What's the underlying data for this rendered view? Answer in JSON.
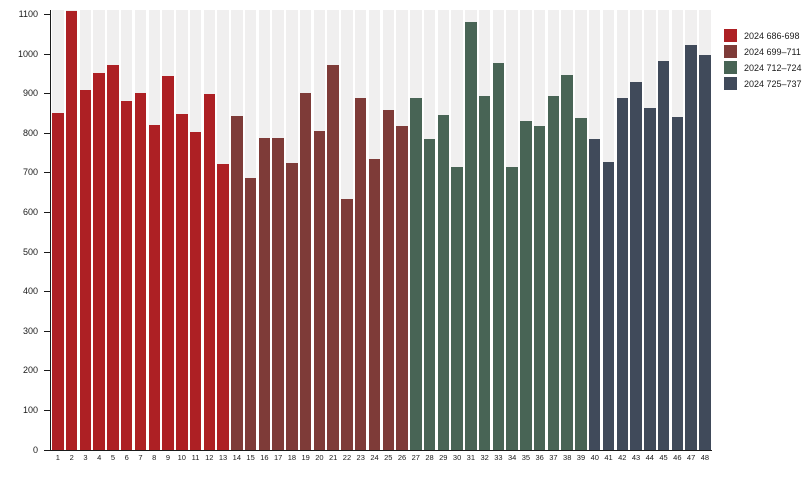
{
  "chart_data": {
    "type": "bar",
    "title": "",
    "xlabel": "",
    "ylabel": "",
    "ylim": [
      0,
      1100
    ],
    "y_ticks": [
      0,
      100,
      200,
      300,
      400,
      500,
      600,
      700,
      800,
      900,
      1000,
      1100
    ],
    "grid": false,
    "legend_position": "top-right",
    "plot_background_column_color": "#f0efef",
    "categories": [
      "1",
      "2",
      "3",
      "4",
      "5",
      "6",
      "7",
      "8",
      "9",
      "10",
      "11",
      "12",
      "13",
      "14",
      "15",
      "16",
      "17",
      "18",
      "19",
      "20",
      "21",
      "22",
      "23",
      "24",
      "25",
      "26",
      "27",
      "28",
      "29",
      "30",
      "31",
      "32",
      "33",
      "34",
      "35",
      "36",
      "37",
      "38",
      "39",
      "40",
      "41",
      "42",
      "43",
      "44",
      "45",
      "46",
      "47",
      "48"
    ],
    "series": [
      {
        "name": "2024 686-698",
        "color": "#ad2024",
        "category_range": [
          "1",
          "13"
        ],
        "values": [
          850,
          1110,
          910,
          952,
          972,
          882,
          903,
          820,
          945,
          848,
          803,
          900,
          722
        ]
      },
      {
        "name": "2024 699–71 1",
        "color": "#7e3b38",
        "category_range": [
          "14",
          "26"
        ],
        "values": [
          843,
          687,
          788,
          788,
          725,
          903,
          806,
          972,
          635,
          888,
          735,
          858,
          818
        ]
      },
      {
        "name": "2024 712–72 4",
        "color": "#486455",
        "category_range": [
          "27",
          "39"
        ],
        "values": [
          888,
          785,
          845,
          716,
          1082,
          893,
          978,
          716,
          830,
          818,
          893,
          947,
          838
        ]
      },
      {
        "name": "2024 725–73 7",
        "color": "#404a5a",
        "category_range": [
          "40",
          "48"
        ],
        "values": [
          785,
          727,
          888,
          930,
          865,
          982,
          840,
          1022,
          997
        ]
      }
    ]
  },
  "legend": {
    "items": [
      {
        "label": "2024 686-698",
        "color": "#ad2024"
      },
      {
        "label": "2024 699–711",
        "color": "#7e3b38"
      },
      {
        "label": "2024 712–724",
        "color": "#486455"
      },
      {
        "label": "2024 725–737",
        "color": "#404a5a"
      }
    ]
  }
}
